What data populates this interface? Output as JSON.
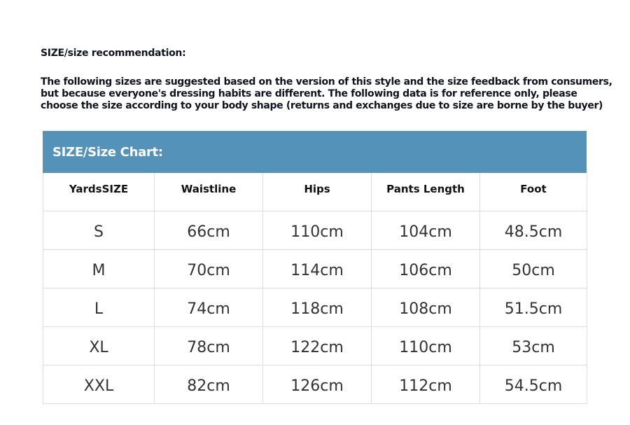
{
  "title": "SIZE/size recommendation:",
  "intro": [
    "The following sizes are suggested based on the version of this style and the size feedback from consumers,",
    "but because everyone's dressing habits are different. The following data is for reference only, please",
    "choose the size according to your body shape (returns and exchanges due to size are borne by the buyer)"
  ],
  "table": {
    "heading": "SIZE/Size Chart:",
    "heading_color": "#5592ba",
    "columns": [
      "YardsSIZE",
      "Waistline",
      "Hips",
      "Pants Length",
      "Foot"
    ],
    "rows": [
      [
        "S",
        "66cm",
        "110cm",
        "104cm",
        "48.5cm"
      ],
      [
        "M",
        "70cm",
        "114cm",
        "106cm",
        "50cm"
      ],
      [
        "L",
        "74cm",
        "118cm",
        "108cm",
        "51.5cm"
      ],
      [
        "XL",
        "78cm",
        "122cm",
        "110cm",
        "53cm"
      ],
      [
        "XXL",
        "82cm",
        "126cm",
        "112cm",
        "54.5cm"
      ]
    ]
  }
}
